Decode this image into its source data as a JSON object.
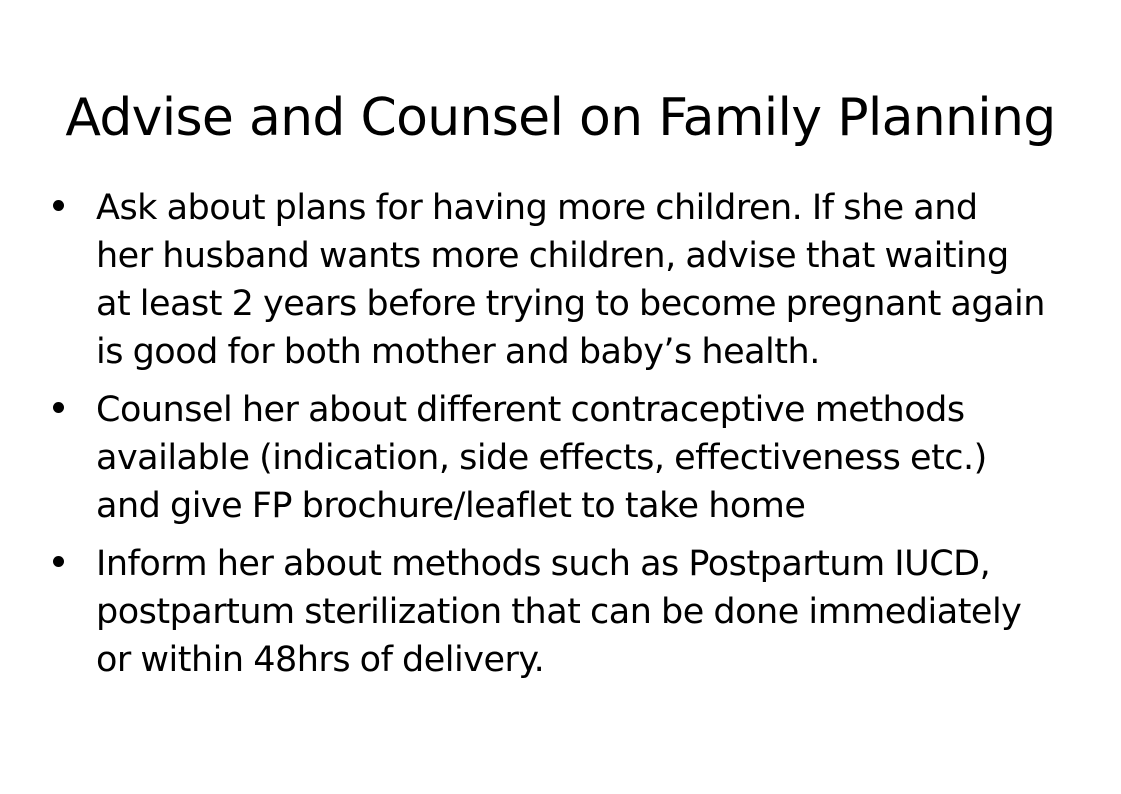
{
  "slide": {
    "title": "Advise and Counsel on Family Planning",
    "bullets": [
      {
        "lines": [
          "Ask about plans for having more children. If she and",
          "her husband wants more children, advise that waiting",
          "at least 2 years before trying to become pregnant again",
          "is good for both mother and baby’s health."
        ]
      },
      {
        "lines": [
          "Counsel her about different contraceptive methods",
          "available (indication, side effects, effectiveness etc.)",
          "and give FP brochure/leaflet to take home"
        ]
      },
      {
        "lines": [
          "Inform her about methods such as Postpartum IUCD,",
          "postpartum sterilization that can be done immediately",
          "or within 48hrs of delivery."
        ]
      }
    ]
  }
}
